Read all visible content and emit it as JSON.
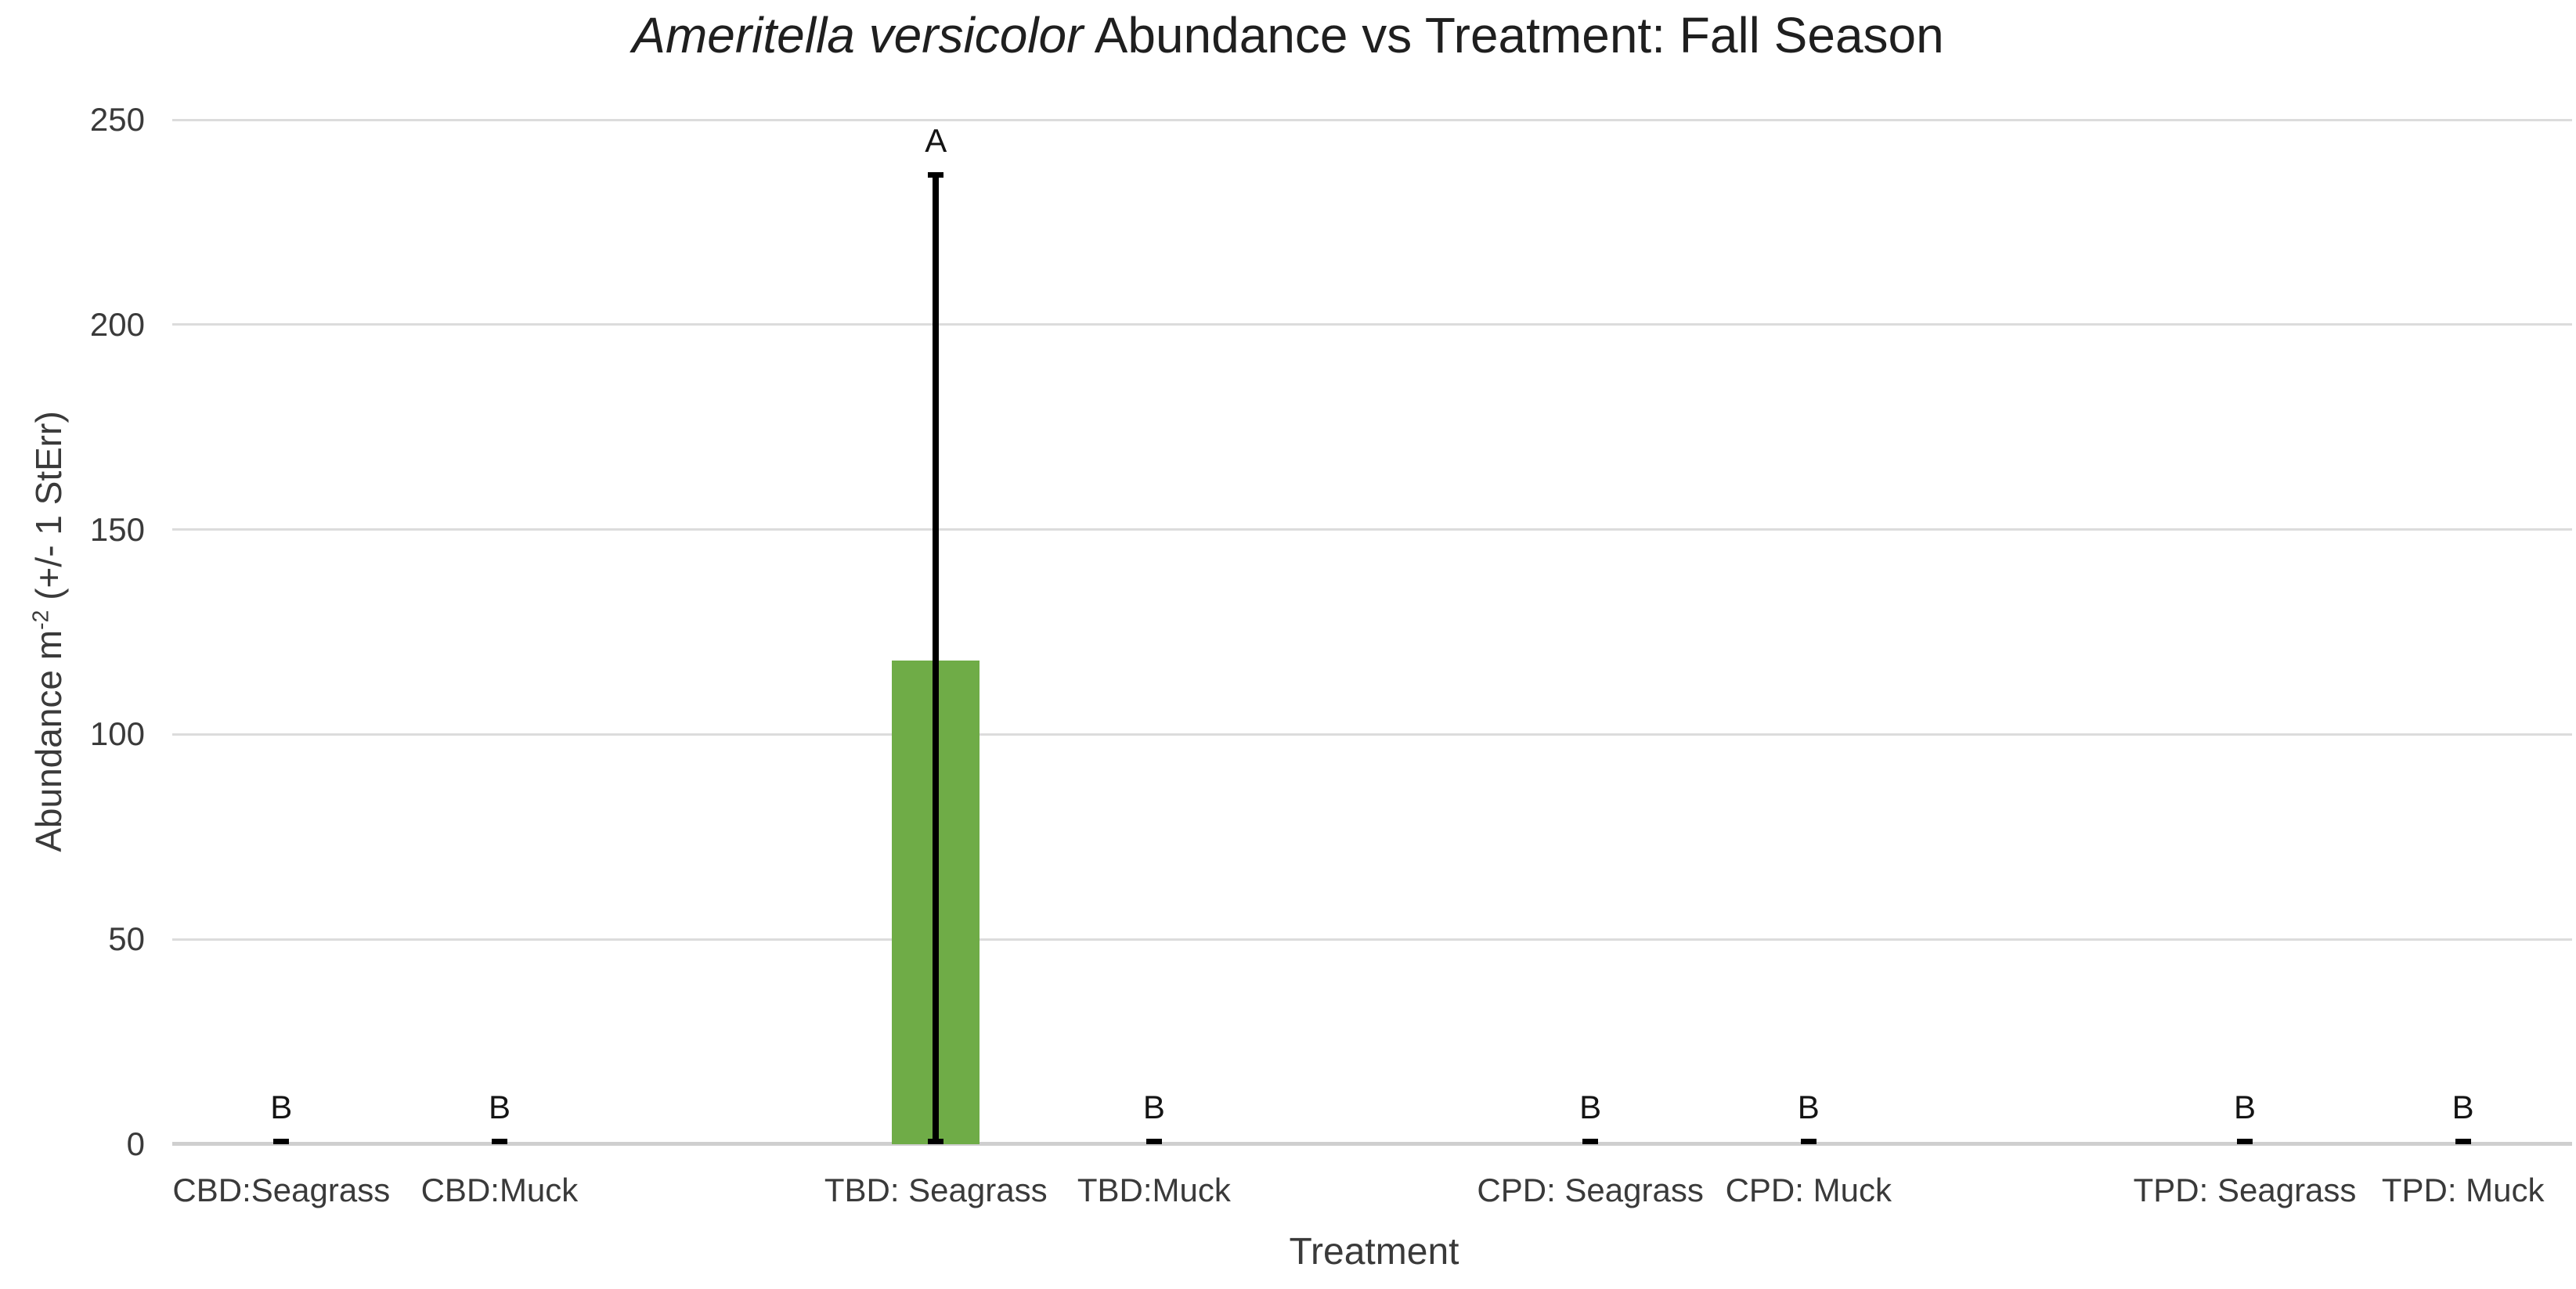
{
  "ui": {
    "title": {
      "italic": "Ameritella versicolor",
      "rest": " Abundance vs Treatment: Fall Season"
    },
    "ylabel_parts": {
      "pre": "Abundance m",
      "sup": "-2",
      "post": " (+/- 1 StErr)"
    },
    "xtitle": "Treatment"
  },
  "chart_data": {
    "type": "bar",
    "title": "Ameritella versicolor Abundance vs Treatment: Fall Season",
    "xlabel": "Treatment",
    "ylabel": "Abundance m⁻² (+/- 1 StErr)",
    "ylim": [
      0,
      250
    ],
    "yticks": [
      0,
      50,
      100,
      150,
      200,
      250
    ],
    "grid": "horizontal",
    "legend": "none",
    "bar_color": "#6FAC47",
    "error_bar_color": "#000000",
    "categories": [
      "CBD:Seagrass",
      "CBD:Muck",
      "TBD: Seagrass",
      "TBD:Muck",
      "CPD: Seagrass",
      "CPD: Muck",
      "TPD: Seagrass",
      "TPD: Muck"
    ],
    "values": [
      0,
      0,
      118,
      0,
      0,
      0,
      0,
      0
    ],
    "error_upper": [
      0.65,
      0.65,
      236.5,
      0.65,
      0.65,
      0.65,
      0.65,
      0.65
    ],
    "sig_letters": [
      "B",
      "B",
      "A",
      "B",
      "B",
      "B",
      "B",
      "B"
    ],
    "slots": [
      {
        "label": "CBD:Seagrass",
        "value": 0,
        "err_hi": 0.65,
        "letter": "B"
      },
      {
        "label": "CBD:Muck",
        "value": 0,
        "err_hi": 0.65,
        "letter": "B"
      },
      {
        "label": ""
      },
      {
        "label": "TBD: Seagrass",
        "value": 118,
        "err_lo": 0,
        "err_hi": 236.5,
        "letter": "A"
      },
      {
        "label": "TBD:Muck",
        "value": 0,
        "err_hi": 0.65,
        "letter": "B"
      },
      {
        "label": ""
      },
      {
        "label": "CPD: Seagrass",
        "value": 0,
        "err_hi": 0.65,
        "letter": "B"
      },
      {
        "label": "CPD: Muck",
        "value": 0,
        "err_hi": 0.65,
        "letter": "B"
      },
      {
        "label": ""
      },
      {
        "label": "TPD: Seagrass",
        "value": 0,
        "err_hi": 0.65,
        "letter": "B"
      },
      {
        "label": "TPD: Muck",
        "value": 0,
        "err_hi": 0.65,
        "letter": "B"
      }
    ]
  }
}
